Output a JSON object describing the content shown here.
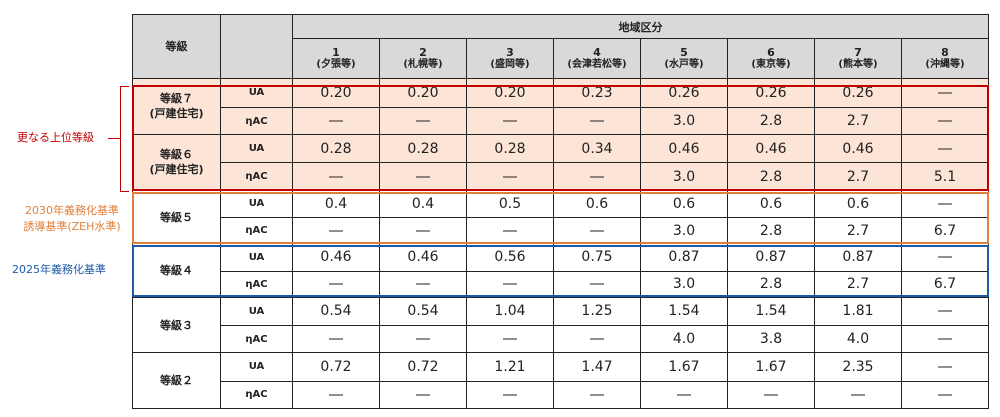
{
  "header": {
    "grade": "等級",
    "region": "地域区分",
    "zones": [
      {
        "num": "1",
        "city": "(夕張等)"
      },
      {
        "num": "2",
        "city": "(札幌等)"
      },
      {
        "num": "3",
        "city": "(盛岡等)"
      },
      {
        "num": "4",
        "city": "(会津若松等)"
      },
      {
        "num": "5",
        "city": "(水戸等)"
      },
      {
        "num": "6",
        "city": "(東京等)"
      },
      {
        "num": "7",
        "city": "(熊本等)"
      },
      {
        "num": "8",
        "city": "(沖縄等)"
      }
    ]
  },
  "grades": [
    {
      "line1": "等級７",
      "line2": "(戸建住宅)",
      "ua": [
        "0.20",
        "0.20",
        "0.20",
        "0.23",
        "0.26",
        "0.26",
        "0.26",
        "―"
      ],
      "eta": [
        "―",
        "―",
        "―",
        "―",
        "3.0",
        "2.8",
        "2.7",
        "―"
      ]
    },
    {
      "line1": "等級６",
      "line2": "(戸建住宅)",
      "ua": [
        "0.28",
        "0.28",
        "0.28",
        "0.34",
        "0.46",
        "0.46",
        "0.46",
        "―"
      ],
      "eta": [
        "―",
        "―",
        "―",
        "―",
        "3.0",
        "2.8",
        "2.7",
        "5.1"
      ]
    },
    {
      "line1": "等級５",
      "line2": "",
      "ua": [
        "0.4",
        "0.4",
        "0.5",
        "0.6",
        "0.6",
        "0.6",
        "0.6",
        "―"
      ],
      "eta": [
        "―",
        "―",
        "―",
        "―",
        "3.0",
        "2.8",
        "2.7",
        "6.7"
      ]
    },
    {
      "line1": "等級４",
      "line2": "",
      "ua": [
        "0.46",
        "0.46",
        "0.56",
        "0.75",
        "0.87",
        "0.87",
        "0.87",
        "―"
      ],
      "eta": [
        "―",
        "―",
        "―",
        "―",
        "3.0",
        "2.8",
        "2.7",
        "6.7"
      ]
    },
    {
      "line1": "等級３",
      "line2": "",
      "ua": [
        "0.54",
        "0.54",
        "1.04",
        "1.25",
        "1.54",
        "1.54",
        "1.81",
        "―"
      ],
      "eta": [
        "―",
        "―",
        "―",
        "―",
        "4.0",
        "3.8",
        "4.0",
        "―"
      ]
    },
    {
      "line1": "等級２",
      "line2": "",
      "ua": [
        "0.72",
        "0.72",
        "1.21",
        "1.47",
        "1.67",
        "1.67",
        "2.35",
        "―"
      ],
      "eta": [
        "―",
        "―",
        "―",
        "―",
        "―",
        "―",
        "―",
        "―"
      ]
    }
  ],
  "metrics": {
    "ua": "UA",
    "eta": "ηAC"
  },
  "annotations": {
    "higher": "更なる上位等級",
    "std2030_line1": "2030年義務化基準",
    "std2030_line2": "誘導基準(ZEH水準)",
    "std2025": "2025年義務化基準"
  },
  "colors": {
    "red": "#c00000",
    "orange": "#e0803a",
    "blue": "#1f5aa6",
    "pink": "#fce4d6",
    "header": "#d9d9d9"
  }
}
